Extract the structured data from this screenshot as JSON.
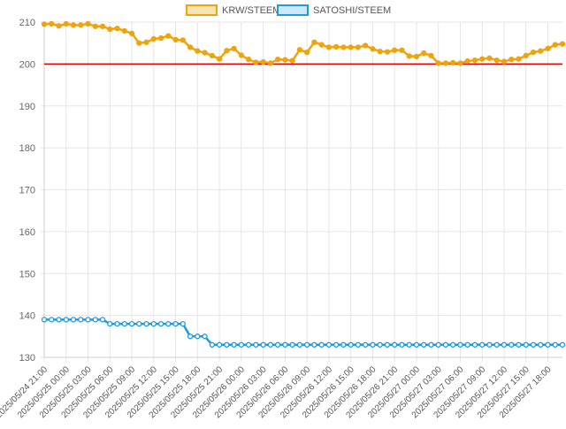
{
  "chart_data": {
    "type": "line",
    "title": "",
    "xlabel": "",
    "ylabel": "",
    "ylim": [
      130,
      210
    ],
    "yticks": [
      130,
      140,
      150,
      160,
      170,
      180,
      190,
      200,
      210
    ],
    "grid": true,
    "legend_position": "top-center",
    "reference_line": {
      "y": 200,
      "color": "#e00000"
    },
    "x": [
      "2025/05/24 21:00",
      "2025/05/24 22:00",
      "2025/05/24 23:00",
      "2025/05/25 00:00",
      "2025/05/25 01:00",
      "2025/05/25 02:00",
      "2025/05/25 03:00",
      "2025/05/25 04:00",
      "2025/05/25 05:00",
      "2025/05/25 06:00",
      "2025/05/25 07:00",
      "2025/05/25 08:00",
      "2025/05/25 09:00",
      "2025/05/25 10:00",
      "2025/05/25 11:00",
      "2025/05/25 12:00",
      "2025/05/25 13:00",
      "2025/05/25 14:00",
      "2025/05/25 15:00",
      "2025/05/25 16:00",
      "2025/05/25 17:00",
      "2025/05/25 18:00",
      "2025/05/25 19:00",
      "2025/05/25 20:00",
      "2025/05/25 21:00",
      "2025/05/25 22:00",
      "2025/05/25 23:00",
      "2025/05/26 00:00",
      "2025/05/26 01:00",
      "2025/05/26 02:00",
      "2025/05/26 03:00",
      "2025/05/26 04:00",
      "2025/05/26 05:00",
      "2025/05/26 06:00",
      "2025/05/26 07:00",
      "2025/05/26 08:00",
      "2025/05/26 09:00",
      "2025/05/26 10:00",
      "2025/05/26 11:00",
      "2025/05/26 12:00",
      "2025/05/26 13:00",
      "2025/05/26 14:00",
      "2025/05/26 15:00",
      "2025/05/26 16:00",
      "2025/05/26 17:00",
      "2025/05/26 18:00",
      "2025/05/26 19:00",
      "2025/05/26 20:00",
      "2025/05/26 21:00",
      "2025/05/26 22:00",
      "2025/05/26 23:00",
      "2025/05/27 00:00",
      "2025/05/27 01:00",
      "2025/05/27 02:00",
      "2025/05/27 03:00",
      "2025/05/27 04:00",
      "2025/05/27 05:00",
      "2025/05/27 06:00",
      "2025/05/27 07:00",
      "2025/05/27 08:00",
      "2025/05/27 09:00",
      "2025/05/27 10:00",
      "2025/05/27 11:00",
      "2025/05/27 12:00",
      "2025/05/27 13:00",
      "2025/05/27 14:00",
      "2025/05/27 15:00",
      "2025/05/27 16:00",
      "2025/05/27 17:00",
      "2025/05/27 18:00",
      "2025/05/27 19:00",
      "2025/05/27 20:00"
    ],
    "x_tick_labels": [
      "2025/05/24 21:00",
      "2025/05/25 00:00",
      "2025/05/25 03:00",
      "2025/05/25 06:00",
      "2025/05/25 09:00",
      "2025/05/25 12:00",
      "2025/05/25 15:00",
      "2025/05/25 18:00",
      "2025/05/25 21:00",
      "2025/05/26 00:00",
      "2025/05/26 03:00",
      "2025/05/26 06:00",
      "2025/05/26 09:00",
      "2025/05/26 12:00",
      "2025/05/26 15:00",
      "2025/05/26 18:00",
      "2025/05/26 21:00",
      "2025/05/27 00:00",
      "2025/05/27 03:00",
      "2025/05/27 06:00",
      "2025/05/27 09:00",
      "2025/05/27 12:00",
      "2025/05/27 15:00",
      "2025/05/27 18:00"
    ],
    "series": [
      {
        "name": "KRW/STEEM",
        "color": "#f0a30a",
        "values": [
          209.5,
          209.6,
          209.1,
          209.6,
          209.3,
          209.3,
          209.6,
          209.0,
          209.0,
          208.3,
          208.5,
          207.9,
          207.3,
          205.0,
          205.2,
          206.0,
          206.2,
          206.7,
          205.8,
          205.7,
          204.0,
          203.1,
          202.7,
          202.0,
          201.2,
          203.2,
          203.7,
          202.1,
          201.1,
          200.4,
          200.5,
          200.2,
          201.1,
          201.0,
          200.8,
          203.4,
          202.8,
          205.2,
          204.6,
          204.0,
          204.1,
          204.0,
          204.0,
          204.0,
          204.4,
          203.6,
          203.0,
          202.9,
          203.3,
          203.3,
          201.9,
          201.8,
          202.6,
          202.0,
          200.2,
          200.2,
          200.3,
          200.2,
          200.7,
          200.9,
          201.2,
          201.4,
          200.9,
          200.6,
          201.1,
          201.2,
          202.0,
          202.8,
          203.1,
          203.7,
          204.6,
          204.8
        ]
      },
      {
        "name": "SATOSHI/STEEM",
        "color": "#1e9be0",
        "values": [
          139,
          139,
          139,
          139,
          139,
          139,
          139,
          139,
          139,
          138,
          138,
          138,
          138,
          138,
          138,
          138,
          138,
          138,
          138,
          138,
          135,
          135,
          135,
          133,
          133,
          133,
          133,
          133,
          133,
          133,
          133,
          133,
          133,
          133,
          133,
          133,
          133,
          133,
          133,
          133,
          133,
          133,
          133,
          133,
          133,
          133,
          133,
          133,
          133,
          133,
          133,
          133,
          133,
          133,
          133,
          133,
          133,
          133,
          133,
          133,
          133,
          133,
          133,
          133,
          133,
          133,
          133,
          133,
          133,
          133,
          133,
          133
        ]
      }
    ]
  }
}
